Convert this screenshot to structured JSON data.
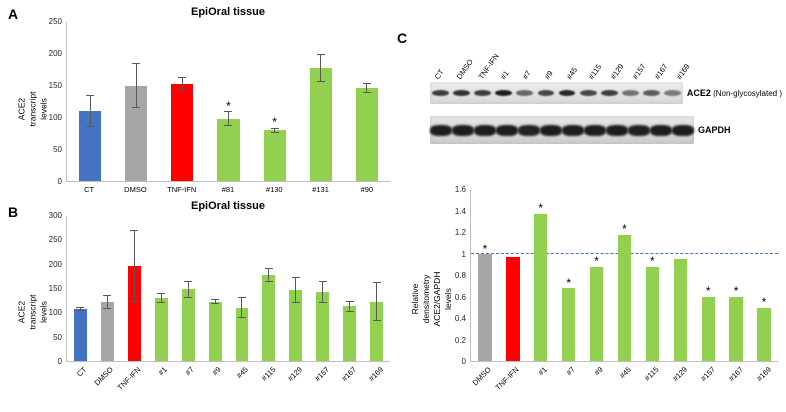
{
  "panels": {
    "a": "A",
    "b": "B",
    "c": "C"
  },
  "chart_data": [
    {
      "type": "bar",
      "title": "EpiOral tissue",
      "ylabel": "ACE2 transcript levels",
      "xlabel": "",
      "ylim": [
        0,
        250
      ],
      "ytick_values": [
        0,
        50,
        100,
        150,
        200,
        250
      ],
      "ytick_labels": [
        "0",
        "50",
        "100",
        "150",
        "200",
        "250"
      ],
      "categories": [
        "CT",
        "DMSO",
        "TNF-IFN",
        "#81",
        "#130",
        "#131",
        "#90"
      ],
      "values": [
        110,
        150,
        153,
        98,
        80,
        177,
        146
      ],
      "errors": [
        25,
        35,
        10,
        12,
        4,
        22,
        8
      ],
      "colors": [
        "#4472C4",
        "#A6A6A6",
        "#FF0000",
        "#92D050",
        "#92D050",
        "#92D050",
        "#92D050"
      ],
      "sig": [
        false,
        false,
        false,
        true,
        true,
        false,
        false
      ],
      "grid": false,
      "legend": "none"
    },
    {
      "type": "bar",
      "title": "EpiOral tissue",
      "ylabel": "ACE2 transcript levels",
      "xlabel": "",
      "ylim": [
        0,
        300
      ],
      "ytick_values": [
        0,
        50,
        100,
        150,
        200,
        250,
        300
      ],
      "ytick_labels": [
        "0",
        "50",
        "100",
        "150",
        "200",
        "250",
        "300"
      ],
      "categories": [
        "CT",
        "DMSO",
        "TNF-IFN",
        "#1",
        "#7",
        "#9",
        "#45",
        "#115",
        "#129",
        "#157",
        "#167",
        "#169"
      ],
      "values": [
        107,
        122,
        197,
        130,
        148,
        123,
        110,
        178,
        146,
        143,
        113,
        123
      ],
      "errors": [
        4,
        14,
        75,
        10,
        18,
        5,
        22,
        14,
        27,
        22,
        12,
        40
      ],
      "colors": [
        "#4472C4",
        "#A6A6A6",
        "#FF0000",
        "#92D050",
        "#92D050",
        "#92D050",
        "#92D050",
        "#92D050",
        "#92D050",
        "#92D050",
        "#92D050",
        "#92D050"
      ],
      "sig": [
        false,
        false,
        false,
        false,
        false,
        false,
        false,
        false,
        false,
        false,
        false,
        false
      ],
      "grid": false,
      "legend": "none"
    },
    {
      "type": "bar",
      "title": "",
      "ylabel": "Relative densitometry\nACE2/GAPDH levels",
      "xlabel": "",
      "ylim": [
        0,
        1.6
      ],
      "ytick_values": [
        0,
        0.2,
        0.4,
        0.6,
        0.8,
        1,
        1.2,
        1.4,
        1.6
      ],
      "ytick_labels": [
        "0",
        "0.2",
        "0.4",
        "0.6",
        "0.8",
        "1",
        "1.2",
        "1.4",
        "1.6"
      ],
      "categories": [
        "DMSO",
        "TNF-IFN",
        "#1",
        "#7",
        "#9",
        "#45",
        "#115",
        "#129",
        "#157",
        "#167",
        "#169"
      ],
      "values": [
        1.0,
        0.97,
        1.38,
        0.68,
        0.88,
        1.18,
        0.88,
        0.95,
        0.6,
        0.6,
        0.5
      ],
      "errors": [
        0,
        0,
        0,
        0,
        0,
        0,
        0,
        0,
        0,
        0,
        0
      ],
      "colors": [
        "#A6A6A6",
        "#FF0000",
        "#92D050",
        "#92D050",
        "#92D050",
        "#92D050",
        "#92D050",
        "#92D050",
        "#92D050",
        "#92D050",
        "#92D050"
      ],
      "sig": [
        true,
        false,
        true,
        true,
        true,
        true,
        true,
        false,
        true,
        true,
        true
      ],
      "refline": 1.0,
      "grid": false,
      "legend": "none"
    }
  ],
  "blot": {
    "lanes": [
      "CT",
      "DMSO",
      "TNF-IFN",
      "#1",
      "#7",
      "#9",
      "#45",
      "#115",
      "#129",
      "#157",
      "#167",
      "#169"
    ],
    "rows": [
      {
        "name": "ACE2",
        "label_bold": "ACE2",
        "label_rest": " (Non-glycosylated )",
        "intensities": [
          0.8,
          0.85,
          0.8,
          0.95,
          0.6,
          0.75,
          0.9,
          0.75,
          0.8,
          0.55,
          0.65,
          0.5
        ]
      },
      {
        "name": "GAPDH",
        "label_bold": "GAPDH",
        "label_rest": "",
        "intensities": [
          0.95,
          0.95,
          0.95,
          0.95,
          0.92,
          0.95,
          0.95,
          0.95,
          0.95,
          0.93,
          0.95,
          0.95
        ]
      }
    ]
  }
}
